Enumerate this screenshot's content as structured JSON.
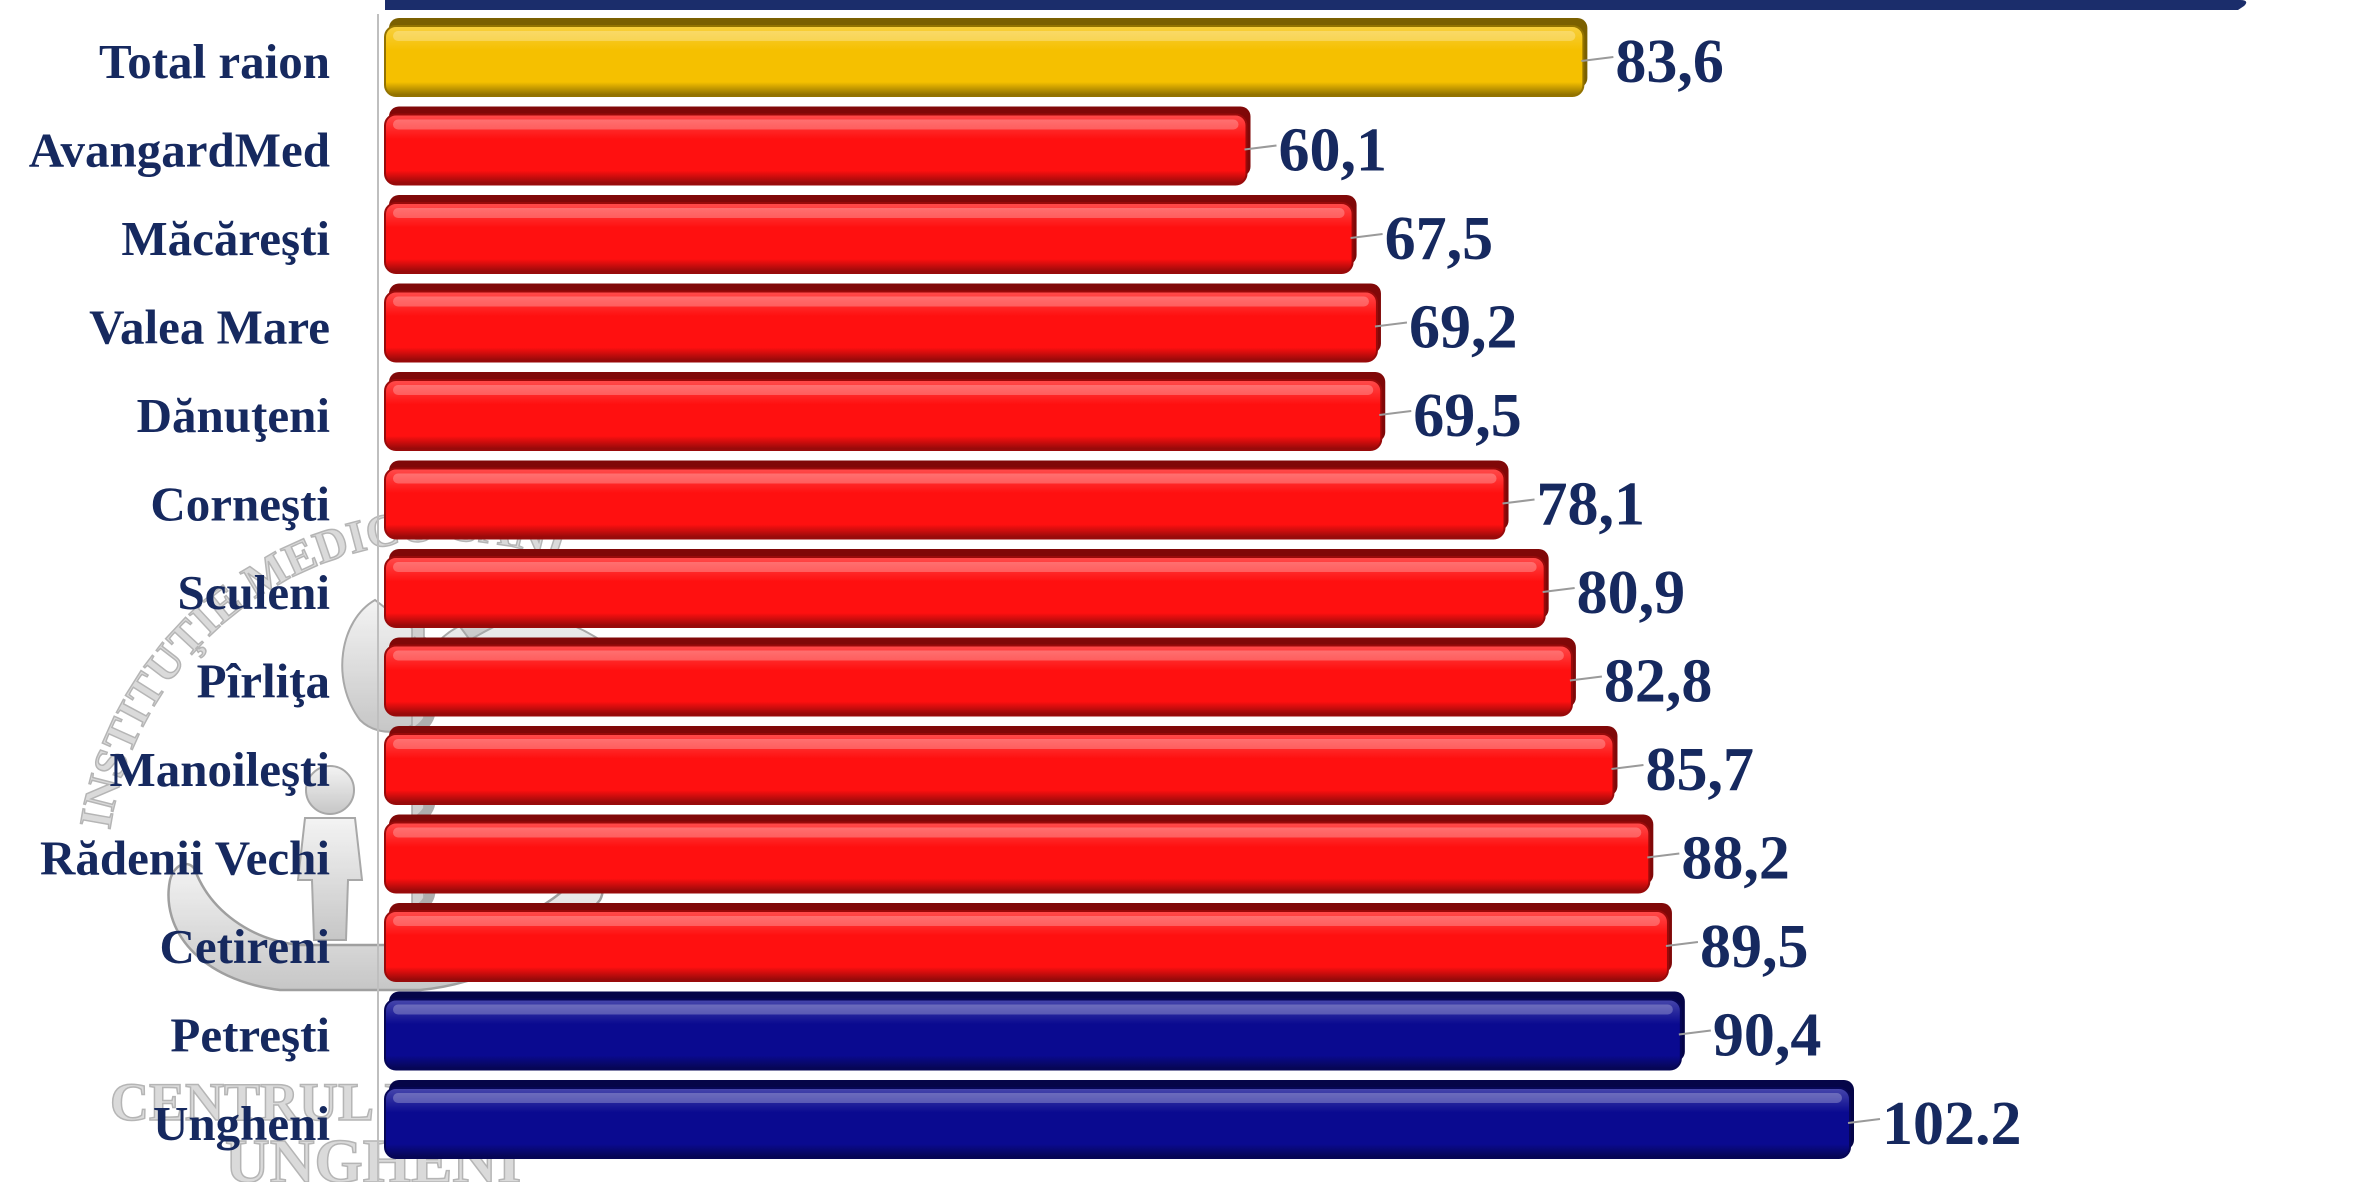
{
  "chart_data": {
    "type": "bar",
    "orientation": "horizontal",
    "categories": [
      "Total raion",
      "AvangardMed",
      "Măcăreşti",
      "Valea Mare",
      "Dănuţeni",
      "Corneşti",
      "Sculeni",
      "Pîrliţa",
      "Manoileşti",
      "Rădenii Vechi",
      "Cetireni",
      "Petreşti",
      "Ungheni"
    ],
    "values": [
      83.6,
      60.1,
      67.5,
      69.2,
      69.5,
      78.1,
      80.9,
      82.8,
      85.7,
      88.2,
      89.5,
      90.4,
      102.2
    ],
    "value_labels": [
      "83,6",
      "60,1",
      "67,5",
      "69,2",
      "69,5",
      "78,1",
      "80,9",
      "82,8",
      "85,7",
      "88,2",
      "89,5",
      "90,4",
      "102.2"
    ],
    "bar_colors": [
      "#f5c000",
      "#ff1010",
      "#ff1010",
      "#ff1010",
      "#ff1010",
      "#ff1010",
      "#ff1010",
      "#ff1010",
      "#ff1010",
      "#ff1010",
      "#ff1010",
      "#0a0a90",
      "#0a0a90"
    ],
    "xlim": [
      0,
      110
    ],
    "grid": false,
    "legend": "none"
  },
  "watermark": {
    "arc_text": "INSTITUŢIE MEDICO-SANITARĂ",
    "line1": "CENTRUL D",
    "line2": "UNGHENI"
  },
  "colors": {
    "label_text": "#16295f",
    "top_band": "#1b2d6b",
    "axis_line": "#bfbfbf"
  }
}
